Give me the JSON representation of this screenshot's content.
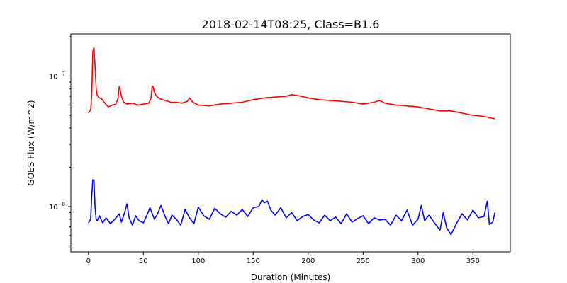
{
  "chart_data": {
    "type": "line",
    "title": "2018-02-14T08:25, Class=B1.6",
    "xlabel": "Duration (Minutes)",
    "ylabel": "GOES Flux (W/m^2)",
    "xlim": [
      -16,
      384
    ],
    "ylim": [
      4.5e-09,
      2.1e-07
    ],
    "yscale": "log",
    "grid": false,
    "x_ticks": [
      0,
      50,
      100,
      150,
      200,
      250,
      300,
      350
    ],
    "x_tick_labels": [
      "0",
      "50",
      "100",
      "150",
      "200",
      "250",
      "300",
      "350"
    ],
    "y_ticks_major": [
      1e-08,
      1e-07
    ],
    "y_tick_labels": [
      {
        "base": "10",
        "exp": "−8"
      },
      {
        "base": "10",
        "exp": "−7"
      }
    ],
    "y_ticks_minor": [
      5e-09,
      6e-09,
      7e-09,
      8e-09,
      9e-09,
      2e-08,
      3e-08,
      4e-08,
      5e-08,
      6e-08,
      7e-08,
      8e-08,
      9e-08,
      2e-07
    ],
    "series": [
      {
        "color": "#ff0000",
        "x": [
          0,
          2,
          3,
          4,
          5,
          6,
          7,
          8,
          10,
          12,
          15,
          18,
          20,
          22,
          25,
          27,
          28,
          29,
          30,
          32,
          35,
          40,
          45,
          50,
          55,
          57,
          58,
          59,
          60,
          62,
          65,
          70,
          75,
          80,
          85,
          90,
          92,
          95,
          100,
          110,
          120,
          130,
          140,
          150,
          160,
          170,
          180,
          185,
          190,
          200,
          210,
          220,
          230,
          240,
          250,
          260,
          265,
          270,
          280,
          290,
          300,
          310,
          320,
          330,
          340,
          350,
          360,
          370
        ],
        "values": [
          5.2e-08,
          5.5e-08,
          7e-08,
          1.55e-07,
          1.65e-07,
          1.2e-07,
          8e-08,
          7.1e-08,
          6.8e-08,
          6.7e-08,
          6.2e-08,
          5.8e-08,
          5.9e-08,
          6e-08,
          6.1e-08,
          6.8e-08,
          8.3e-08,
          7.8e-08,
          7e-08,
          6.3e-08,
          6.1e-08,
          6.2e-08,
          6e-08,
          6.1e-08,
          6.2e-08,
          6.8e-08,
          8.4e-08,
          8.2e-08,
          7.5e-08,
          7e-08,
          6.7e-08,
          6.5e-08,
          6.3e-08,
          6.3e-08,
          6.2e-08,
          6.4e-08,
          6.8e-08,
          6.3e-08,
          6e-08,
          5.9e-08,
          6.1e-08,
          6.2e-08,
          6.3e-08,
          6.6e-08,
          6.8e-08,
          6.9e-08,
          7e-08,
          7.2e-08,
          7.1e-08,
          6.8e-08,
          6.6e-08,
          6.5e-08,
          6.4e-08,
          6.3e-08,
          6.1e-08,
          6.3e-08,
          6.5e-08,
          6.2e-08,
          6e-08,
          5.9e-08,
          5.8e-08,
          5.6e-08,
          5.4e-08,
          5.4e-08,
          5.2e-08,
          5e-08,
          4.9e-08,
          4.7e-08
        ]
      },
      {
        "color": "#0000ff",
        "x": [
          0,
          2,
          3,
          4,
          5,
          6,
          7,
          8,
          10,
          13,
          16,
          20,
          24,
          28,
          30,
          33,
          35,
          37,
          40,
          43,
          46,
          50,
          53,
          56,
          60,
          63,
          66,
          70,
          73,
          76,
          80,
          84,
          88,
          92,
          96,
          100,
          105,
          110,
          115,
          120,
          125,
          130,
          135,
          140,
          145,
          150,
          155,
          158,
          160,
          163,
          166,
          170,
          175,
          180,
          185,
          190,
          195,
          200,
          205,
          210,
          215,
          220,
          225,
          230,
          235,
          240,
          245,
          250,
          255,
          260,
          265,
          270,
          275,
          280,
          285,
          290,
          295,
          300,
          303,
          306,
          310,
          315,
          320,
          323,
          326,
          330,
          335,
          340,
          345,
          350,
          355,
          360,
          363,
          365,
          368,
          370
        ],
        "values": [
          7.5e-09,
          8e-09,
          1.2e-08,
          1.6e-08,
          1.6e-08,
          1e-08,
          8e-09,
          7.8e-09,
          8.5e-09,
          7.5e-09,
          8.2e-09,
          7.4e-09,
          8e-09,
          8.8e-09,
          7.6e-09,
          9e-09,
          1.05e-08,
          8.2e-09,
          7.2e-09,
          8.5e-09,
          7.8e-09,
          7.5e-09,
          8.5e-09,
          9.8e-09,
          8e-09,
          8.8e-09,
          1.02e-08,
          8.3e-09,
          7.4e-09,
          8.6e-09,
          8e-09,
          7.2e-09,
          9.5e-09,
          8.2e-09,
          7.4e-09,
          9.9e-09,
          8.5e-09,
          8e-09,
          9.7e-09,
          8.8e-09,
          8.3e-09,
          9.2e-09,
          8.6e-09,
          9.5e-09,
          8.4e-09,
          9.8e-09,
          1e-08,
          1.13e-08,
          1.07e-08,
          1.1e-08,
          9.4e-09,
          8.6e-09,
          9.8e-09,
          8.2e-09,
          9e-09,
          7.8e-09,
          8.4e-09,
          8.7e-09,
          7.9e-09,
          7.5e-09,
          8.6e-09,
          7.8e-09,
          8.3e-09,
          7.4e-09,
          8.8e-09,
          7.6e-09,
          8.1e-09,
          8.5e-09,
          7.4e-09,
          8.2e-09,
          7.9e-09,
          8e-09,
          7.2e-09,
          8.6e-09,
          7.8e-09,
          9.4e-09,
          7.2e-09,
          8e-09,
          1.02e-08,
          7.8e-09,
          8.6e-09,
          7.5e-09,
          6.6e-09,
          9e-09,
          6.9e-09,
          6.1e-09,
          7.4e-09,
          8.8e-09,
          7.9e-09,
          9.4e-09,
          8.2e-09,
          8.4e-09,
          1.1e-08,
          7.3e-09,
          7.6e-09,
          9e-09
        ]
      }
    ]
  }
}
